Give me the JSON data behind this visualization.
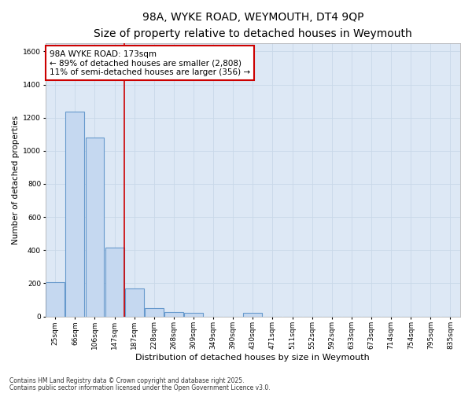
{
  "title_line1": "98A, WYKE ROAD, WEYMOUTH, DT4 9QP",
  "title_line2": "Size of property relative to detached houses in Weymouth",
  "xlabel": "Distribution of detached houses by size in Weymouth",
  "ylabel": "Number of detached properties",
  "categories": [
    "25sqm",
    "66sqm",
    "106sqm",
    "147sqm",
    "187sqm",
    "228sqm",
    "268sqm",
    "309sqm",
    "349sqm",
    "390sqm",
    "430sqm",
    "471sqm",
    "511sqm",
    "552sqm",
    "592sqm",
    "633sqm",
    "673sqm",
    "714sqm",
    "754sqm",
    "795sqm",
    "835sqm"
  ],
  "values": [
    205,
    1235,
    1080,
    415,
    170,
    50,
    25,
    20,
    0,
    0,
    20,
    0,
    0,
    0,
    0,
    0,
    0,
    0,
    0,
    0,
    0
  ],
  "bar_color": "#c5d8f0",
  "bar_edge_color": "#6699cc",
  "bar_linewidth": 0.8,
  "vline_x_index": 3.5,
  "vline_color": "#cc0000",
  "vline_linewidth": 1.2,
  "annotation_text": "98A WYKE ROAD: 173sqm\n← 89% of detached houses are smaller (2,808)\n11% of semi-detached houses are larger (356) →",
  "annotation_box_color": "#cc0000",
  "annotation_text_color": "#000000",
  "annotation_fontsize": 7.5,
  "ylim": [
    0,
    1650
  ],
  "yticks": [
    0,
    200,
    400,
    600,
    800,
    1000,
    1200,
    1400,
    1600
  ],
  "grid_color": "#c8d8e8",
  "grid_linewidth": 0.6,
  "figure_bg_color": "#ffffff",
  "plot_bg_color": "#dde8f5",
  "footnote1": "Contains HM Land Registry data © Crown copyright and database right 2025.",
  "footnote2": "Contains public sector information licensed under the Open Government Licence v3.0.",
  "title_fontsize": 10,
  "subtitle_fontsize": 8.5,
  "ylabel_fontsize": 7.5,
  "xlabel_fontsize": 8,
  "tick_fontsize": 6.5,
  "footnote_fontsize": 5.5
}
